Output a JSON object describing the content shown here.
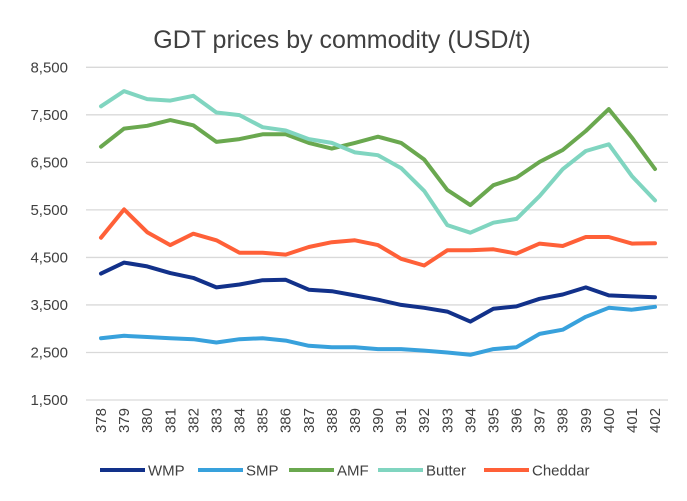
{
  "chart_data": {
    "type": "line",
    "title": "GDT prices by commodity (USD/t)",
    "xlabel": "",
    "ylabel": "",
    "ylim": [
      1500,
      8500
    ],
    "yticks": [
      "1,500",
      "2,500",
      "3,500",
      "4,500",
      "5,500",
      "6,500",
      "7,500",
      "8,500"
    ],
    "ytick_values": [
      1500,
      2500,
      3500,
      4500,
      5500,
      6500,
      7500,
      8500
    ],
    "grid": true,
    "legend_position": "bottom",
    "categories": [
      "378",
      "379",
      "380",
      "381",
      "382",
      "383",
      "384",
      "385",
      "386",
      "387",
      "388",
      "389",
      "390",
      "391",
      "392",
      "393",
      "394",
      "395",
      "396",
      "397",
      "398",
      "399",
      "400",
      "401",
      "402"
    ],
    "series": [
      {
        "name": "WMP",
        "color": "#12318a",
        "values": [
          4160,
          4390,
          4310,
          4170,
          4070,
          3870,
          3930,
          4020,
          4030,
          3820,
          3790,
          3700,
          3610,
          3500,
          3440,
          3360,
          3150,
          3420,
          3470,
          3630,
          3720,
          3870,
          3700,
          3680,
          3660
        ]
      },
      {
        "name": "SMP",
        "color": "#38a1dc",
        "values": [
          2800,
          2850,
          2825,
          2800,
          2780,
          2710,
          2780,
          2800,
          2750,
          2640,
          2610,
          2610,
          2570,
          2570,
          2540,
          2500,
          2450,
          2570,
          2610,
          2890,
          2980,
          3250,
          3440,
          3400,
          3460
        ]
      },
      {
        "name": "AMF",
        "color": "#6aa84f",
        "values": [
          6830,
          7210,
          7270,
          7390,
          7280,
          6930,
          6990,
          7090,
          7090,
          6910,
          6790,
          6910,
          7040,
          6910,
          6560,
          5920,
          5600,
          6020,
          6180,
          6510,
          6760,
          7160,
          7620,
          7020,
          6360
        ]
      },
      {
        "name": "Butter",
        "color": "#80d5c0",
        "values": [
          7680,
          8000,
          7830,
          7800,
          7900,
          7550,
          7495,
          7240,
          7170,
          6990,
          6910,
          6710,
          6650,
          6380,
          5900,
          5180,
          5020,
          5230,
          5310,
          5790,
          6355,
          6740,
          6880,
          6210,
          5700
        ]
      },
      {
        "name": "Cheddar",
        "color": "#ff6038",
        "values": [
          4915,
          5510,
          5030,
          4760,
          5000,
          4860,
          4600,
          4600,
          4560,
          4720,
          4820,
          4860,
          4760,
          4470,
          4330,
          4650,
          4650,
          4670,
          4580,
          4790,
          4740,
          4930,
          4930,
          4790,
          4800
        ]
      }
    ]
  }
}
